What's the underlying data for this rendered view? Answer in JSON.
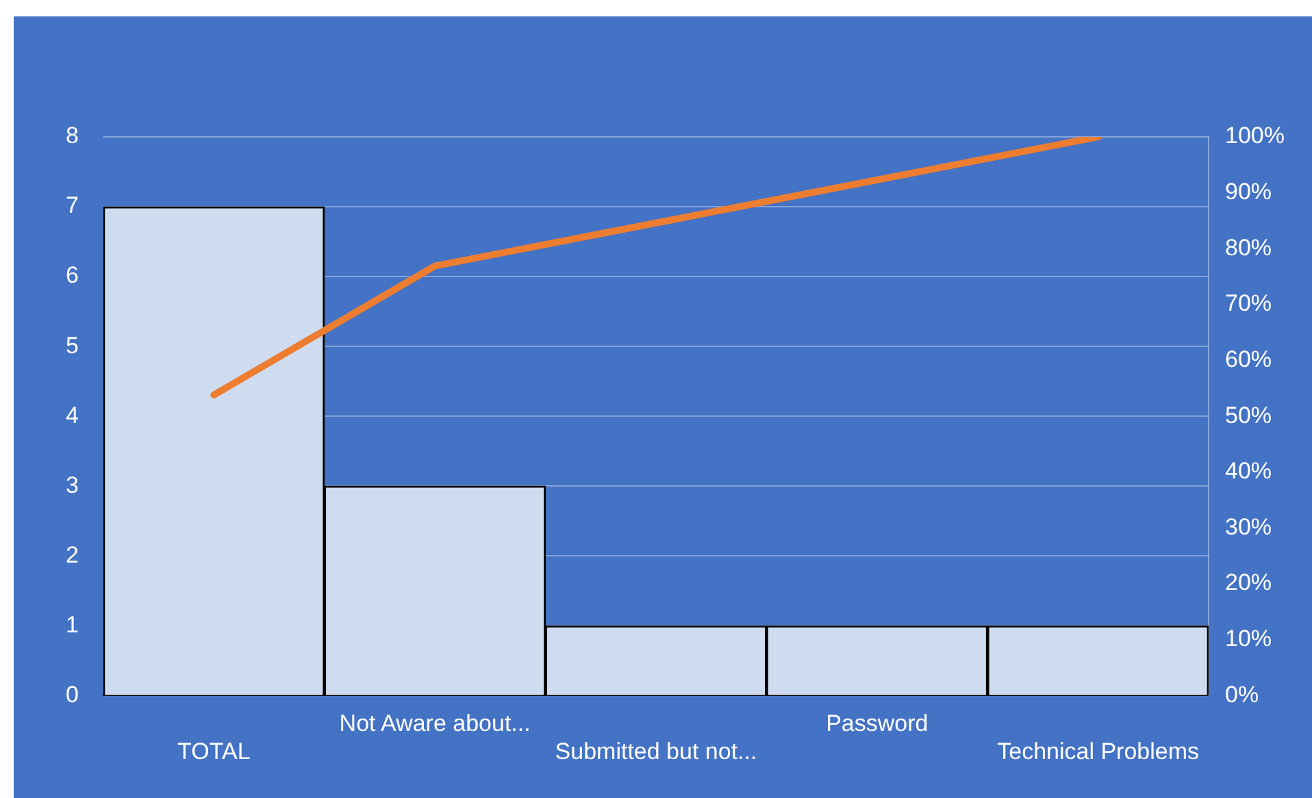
{
  "chart_data": {
    "type": "bar",
    "categories": [
      "TOTAL",
      "Not Aware about...",
      "Submitted but not...",
      "Password",
      "Technical Problems"
    ],
    "series": [
      {
        "color": "#cfdcef",
        "values": [
          7,
          3,
          1,
          1,
          1
        ]
      },
      {
        "type": "line",
        "color": "#ed7d31",
        "axis": "y2",
        "marker": "none",
        "values": [
          53.8,
          76.9,
          84.6,
          92.3,
          100
        ]
      }
    ],
    "ylim": [
      0,
      8
    ],
    "yticks": [
      0,
      1,
      2,
      3,
      4,
      5,
      6,
      7,
      8
    ],
    "y2lim": [
      0,
      100
    ],
    "y2ticks": [
      {
        "value": 0,
        "label": "0%"
      },
      {
        "value": 10,
        "label": "10%"
      },
      {
        "value": 20,
        "label": "20%"
      },
      {
        "value": 30,
        "label": "30%"
      },
      {
        "value": 40,
        "label": "40%"
      },
      {
        "value": 50,
        "label": "50%"
      },
      {
        "value": 60,
        "label": "60%"
      },
      {
        "value": 70,
        "label": "70%"
      },
      {
        "value": 80,
        "label": "80%"
      },
      {
        "value": 90,
        "label": "90%"
      },
      {
        "value": 100,
        "label": "100%"
      }
    ],
    "grid": "y",
    "legend": false
  }
}
